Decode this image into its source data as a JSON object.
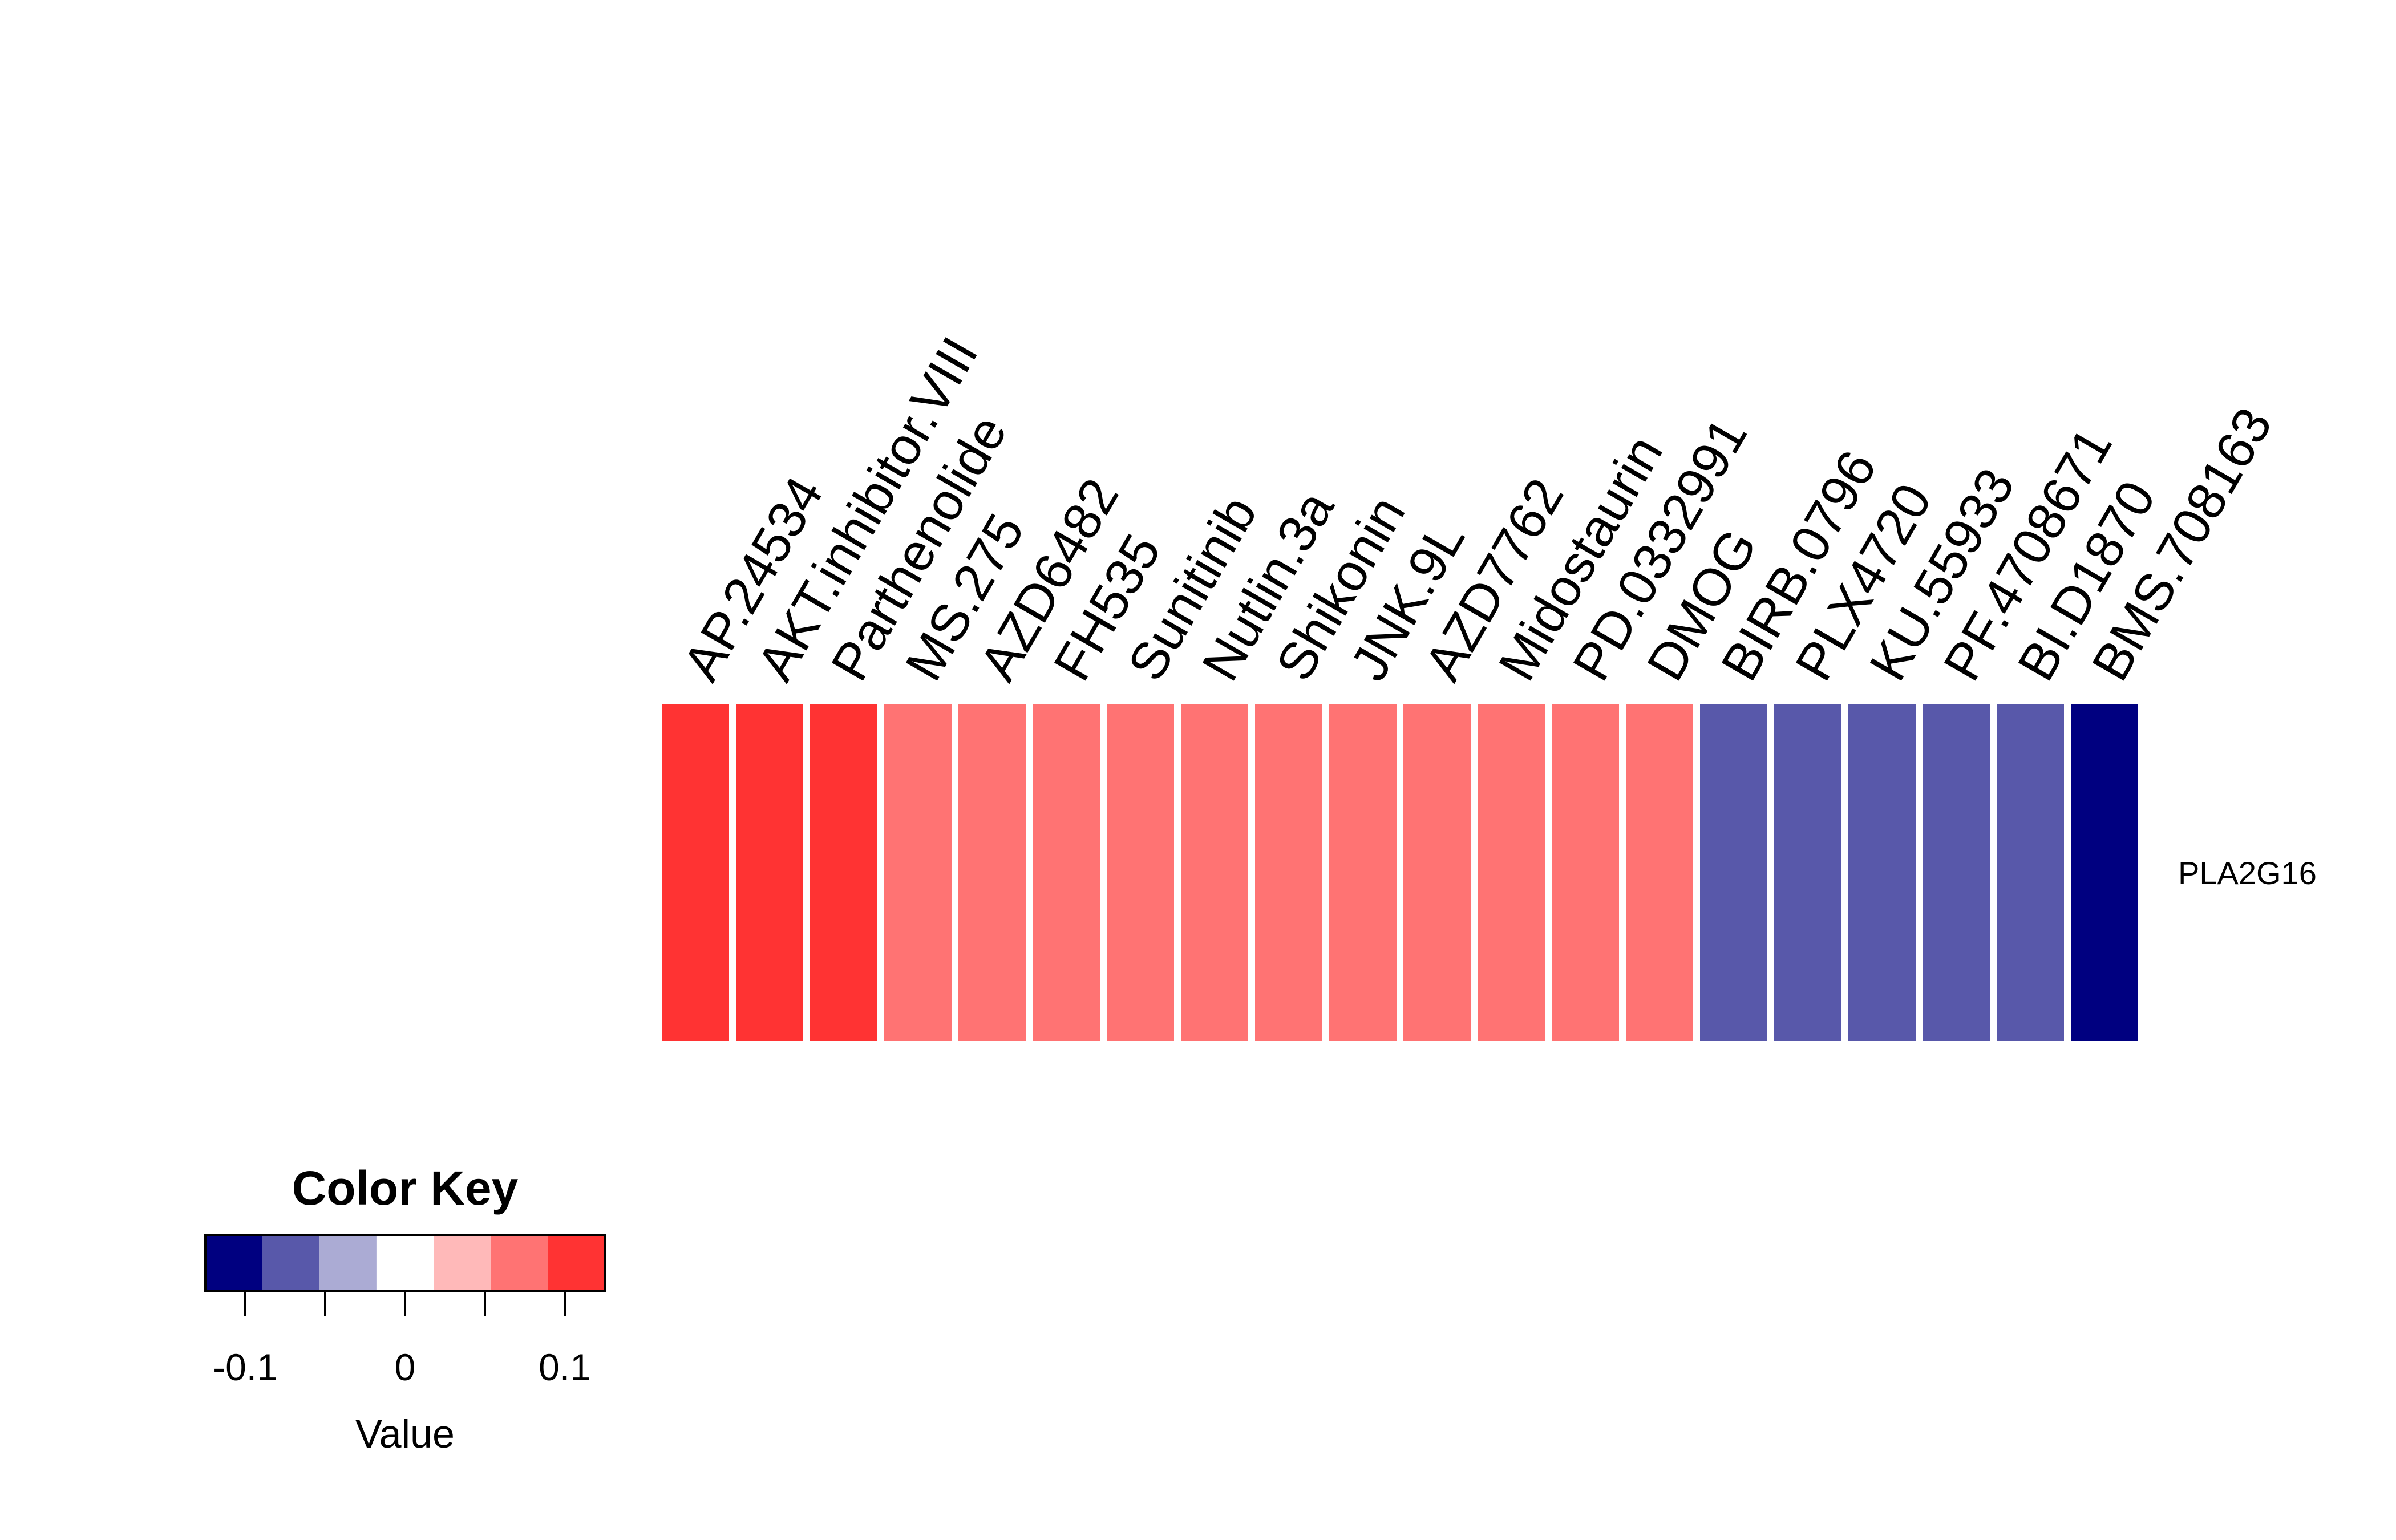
{
  "chart_data": {
    "type": "heatmap",
    "columns": [
      "AP.24534",
      "AKT.inhibitor.VIII",
      "Parthenolide",
      "MS.275",
      "AZD6482",
      "FH535",
      "Sunitinib",
      "Nutlin.3a",
      "Shikonin",
      "JNK.9L",
      "AZD7762",
      "Midostaurin",
      "PD.0332991",
      "DMOG",
      "BIRB.0796",
      "PLX4720",
      "KU.55933",
      "PF.4708671",
      "BI.D1870",
      "BMS.708163"
    ],
    "rows": [
      "PLA2G16"
    ],
    "values": [
      [
        0.11,
        0.11,
        0.11,
        0.07,
        0.07,
        0.07,
        0.07,
        0.07,
        0.07,
        0.07,
        0.07,
        0.07,
        0.07,
        0.07,
        -0.07,
        -0.07,
        -0.07,
        -0.07,
        -0.07,
        -0.11
      ]
    ],
    "color_key": {
      "title": "Color Key",
      "xlabel": "Value",
      "range": [
        -0.125,
        0.125
      ],
      "breaks": [
        -0.125,
        -0.0893,
        -0.0536,
        -0.0179,
        0.0179,
        0.0536,
        0.0893,
        0.125
      ],
      "colors": [
        "#000080",
        "#5858AA",
        "#ABABD4",
        "#FFFFFF",
        "#FFB9B9",
        "#FF7373",
        "#FF3333"
      ],
      "ticks": [
        -0.1,
        -0.05,
        0,
        0.05,
        0.1
      ],
      "tick_labels": [
        "-0.1",
        "",
        "0",
        "",
        "0.1"
      ]
    }
  }
}
